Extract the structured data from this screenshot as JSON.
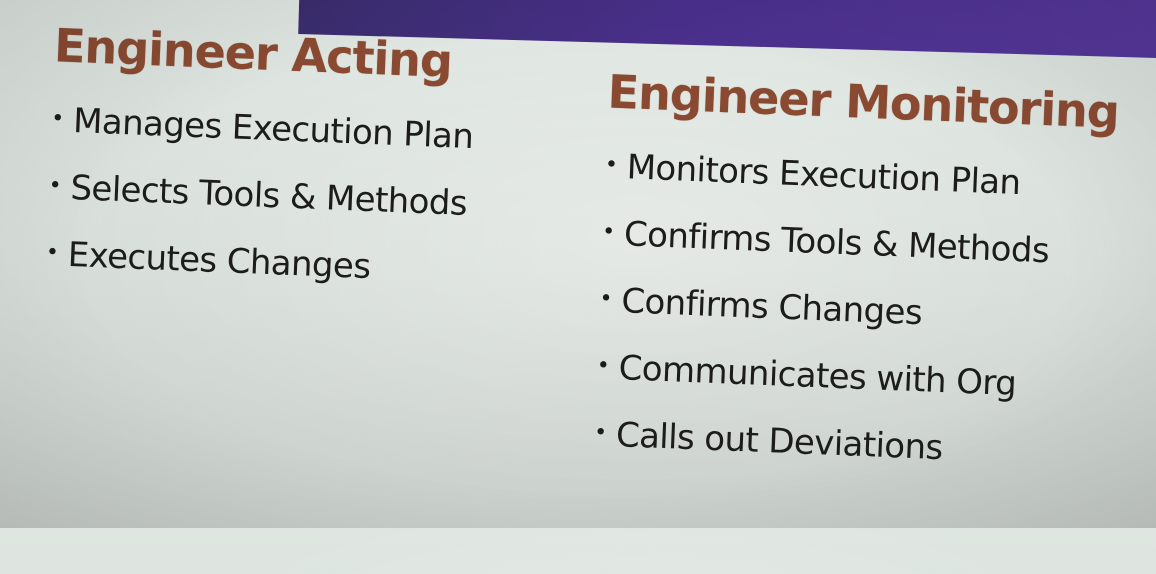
{
  "left_column": {
    "heading": "Engineer Acting",
    "items": [
      "Manages Execution Plan",
      "Selects Tools & Methods",
      "Executes Changes"
    ]
  },
  "right_column": {
    "heading": "Engineer Monitoring",
    "items": [
      "Monitors Execution Plan",
      "Confirms Tools & Methods",
      "Confirms Changes",
      "Communicates with Org",
      "Calls out Deviations"
    ]
  },
  "colors": {
    "heading": "#8a4a32",
    "text": "#1c1c1c",
    "accent_band": "#4a2f8c",
    "background": "#dfe6e1"
  }
}
